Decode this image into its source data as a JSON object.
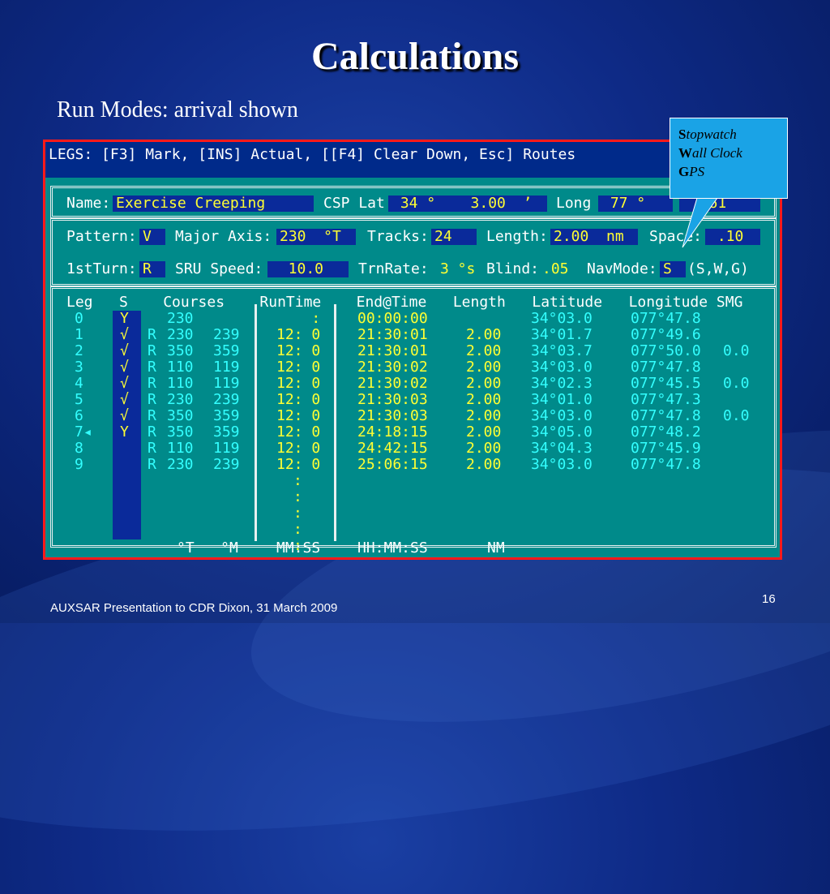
{
  "slide": {
    "title": "Calculations",
    "subtitle": "Run Modes: arrival shown",
    "footer": "AUXSAR Presentation to CDR Dixon, 31 March 2009",
    "page_number": "16"
  },
  "callout": {
    "lines": [
      {
        "initial": "S",
        "rest": "topwatch"
      },
      {
        "initial": "W",
        "rest": "all Clock"
      },
      {
        "initial": "G",
        "rest": "PS"
      }
    ]
  },
  "screen": {
    "header": "LEGS: [F3] Mark, [INS] Actual, [[F4] Clear Down, Esc] Routes",
    "name_label": "Name:",
    "name_value": "Exercise Creeping",
    "csp_label": "CSP Lat",
    "lat_value": " 34 °    3.00  ’",
    "long_label": "Long",
    "long_value": " 77 °",
    "long_min_value": "  .61",
    "pattern_label": "Pattern:",
    "pattern_value": "V",
    "major_axis_label": "Major Axis:",
    "major_axis_value": "230  °T",
    "tracks_label": "Tracks:",
    "tracks_value": "24",
    "length_label": "Length:",
    "length_value": "2.00  nm",
    "space_label": "Space:",
    "space_value": " .10",
    "first_turn_label": "1stTurn:",
    "first_turn_value": "R",
    "sru_speed_label": "SRU Speed:",
    "sru_speed_value": "  10.0",
    "trn_rate_label": "TrnRate:",
    "trn_rate_value": "3 °s",
    "blind_label": "Blind:",
    "blind_value": ".05",
    "nav_mode_label": "NavMode:",
    "nav_mode_value": "S",
    "nav_mode_options": "(S,W,G)",
    "table_header": "Leg   S    Courses    RunTime    End@Time   Length   Latitude   Longitude SMG",
    "rows": [
      {
        "leg": "0",
        "s": "Y",
        "r": "",
        "c1": "230",
        "c2": "",
        "run": "    :",
        "end": "00:00:00",
        "len": "",
        "lat": "34°03.0",
        "lon": "077°47.8",
        "smg": ""
      },
      {
        "leg": "1",
        "s": "√",
        "r": "R",
        "c1": "230",
        "c2": "239",
        "run": "12: 0",
        "end": "21:30:01",
        "len": "2.00",
        "lat": "34°01.7",
        "lon": "077°49.6",
        "smg": ""
      },
      {
        "leg": "2",
        "s": "√",
        "r": "R",
        "c1": "350",
        "c2": "359",
        "run": "12: 0",
        "end": "21:30:01",
        "len": "2.00",
        "lat": "34°03.7",
        "lon": "077°50.0",
        "smg": "0.0"
      },
      {
        "leg": "3",
        "s": "√",
        "r": "R",
        "c1": "110",
        "c2": "119",
        "run": "12: 0",
        "end": "21:30:02",
        "len": "2.00",
        "lat": "34°03.0",
        "lon": "077°47.8",
        "smg": ""
      },
      {
        "leg": "4",
        "s": "√",
        "r": "R",
        "c1": "110",
        "c2": "119",
        "run": "12: 0",
        "end": "21:30:02",
        "len": "2.00",
        "lat": "34°02.3",
        "lon": "077°45.5",
        "smg": "0.0"
      },
      {
        "leg": "5",
        "s": "√",
        "r": "R",
        "c1": "230",
        "c2": "239",
        "run": "12: 0",
        "end": "21:30:03",
        "len": "2.00",
        "lat": "34°01.0",
        "lon": "077°47.3",
        "smg": ""
      },
      {
        "leg": "6",
        "s": "√",
        "r": "R",
        "c1": "350",
        "c2": "359",
        "run": "12: 0",
        "end": "21:30:03",
        "len": "2.00",
        "lat": "34°03.0",
        "lon": "077°47.8",
        "smg": "0.0"
      },
      {
        "leg": "7◂",
        "s": "Y",
        "r": "R",
        "c1": "350",
        "c2": "359",
        "run": "12: 0",
        "end": "24:18:15",
        "len": "2.00",
        "lat": "34°05.0",
        "lon": "077°48.2",
        "smg": ""
      },
      {
        "leg": "8",
        "s": "",
        "r": "R",
        "c1": "110",
        "c2": "119",
        "run": "12: 0",
        "end": "24:42:15",
        "len": "2.00",
        "lat": "34°04.3",
        "lon": "077°45.9",
        "smg": ""
      },
      {
        "leg": "9",
        "s": "",
        "r": "R",
        "c1": "230",
        "c2": "239",
        "run": "12: 0",
        "end": "25:06:15",
        "len": "2.00",
        "lat": "34°03.0",
        "lon": "077°47.8",
        "smg": ""
      }
    ],
    "footer_units": {
      "courses": "°T   °M",
      "runtime": "MM:SS",
      "endtime": "HH:MM:SS",
      "length": "NM"
    }
  }
}
